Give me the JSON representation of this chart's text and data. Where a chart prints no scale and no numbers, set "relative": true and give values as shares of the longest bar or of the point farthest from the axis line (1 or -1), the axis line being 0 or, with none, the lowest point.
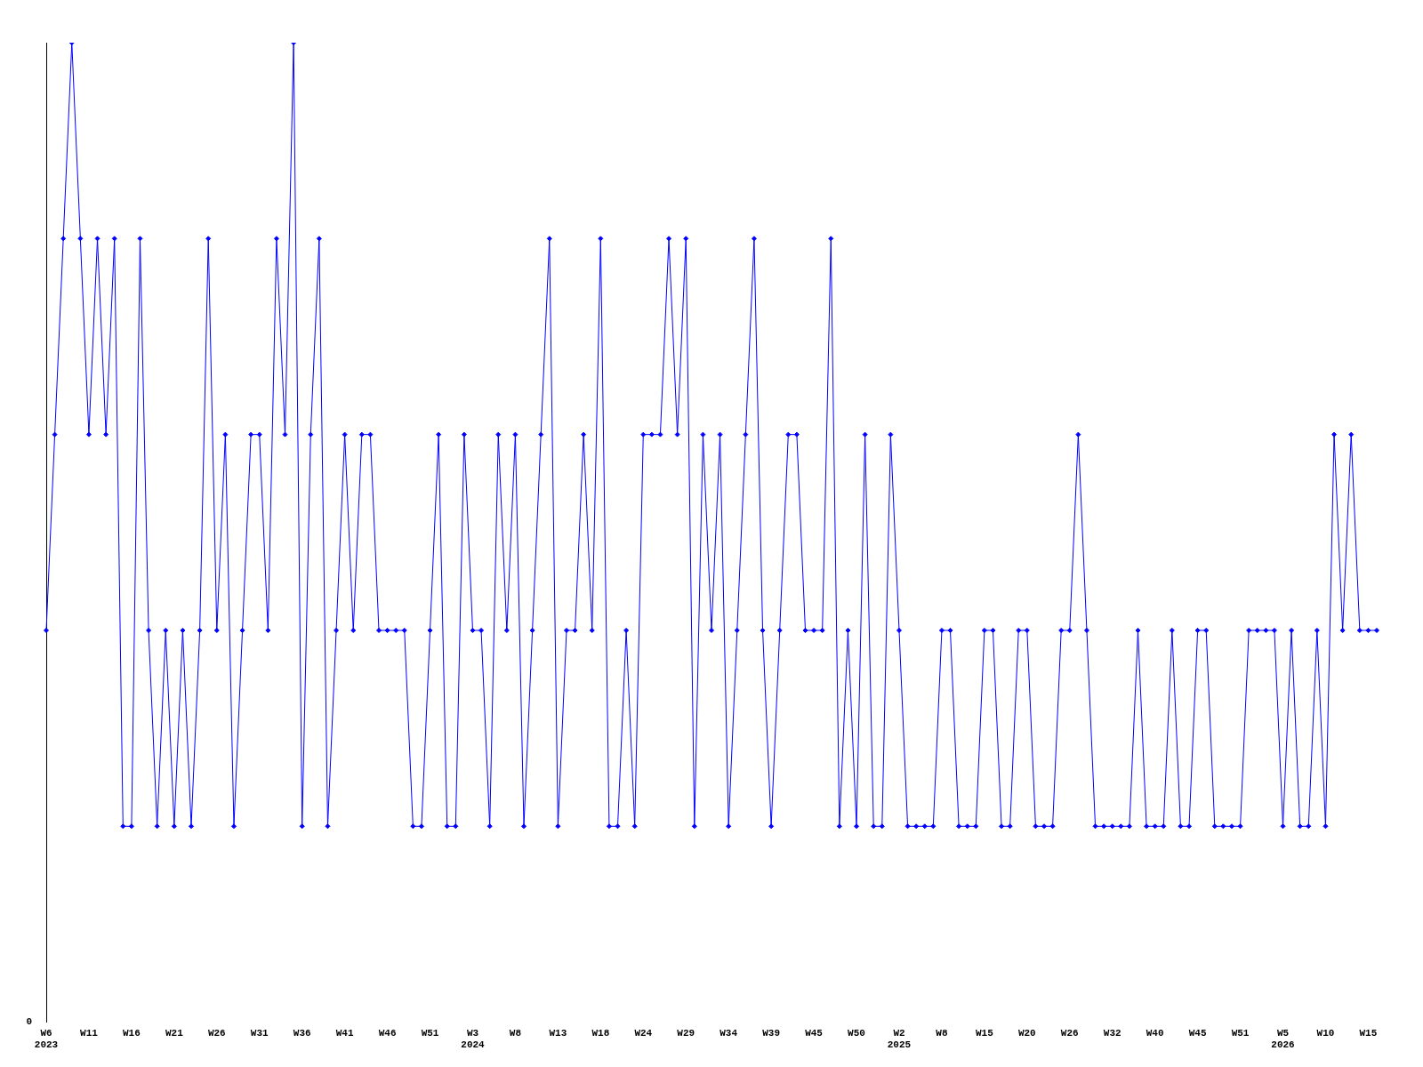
{
  "chart_data": {
    "type": "line",
    "relative": true,
    "annotations": [
      "0"
    ],
    "color": "#0000ff",
    "marker": "diamond",
    "line_style": "solid",
    "grid": false,
    "legend": false,
    "categories": [
      "W6\n2023",
      null,
      null,
      null,
      null,
      "W11",
      null,
      null,
      null,
      null,
      "W16",
      null,
      null,
      null,
      null,
      "W21",
      null,
      null,
      null,
      null,
      "W26",
      null,
      null,
      null,
      null,
      "W31",
      null,
      null,
      null,
      null,
      "W36",
      null,
      null,
      null,
      null,
      "W41",
      null,
      null,
      null,
      null,
      "W46",
      null,
      null,
      null,
      null,
      "W51",
      null,
      null,
      null,
      null,
      "W3\n2024",
      null,
      null,
      null,
      null,
      "W8",
      null,
      null,
      null,
      null,
      "W13",
      null,
      null,
      null,
      null,
      "W18",
      null,
      null,
      null,
      null,
      "W24",
      null,
      null,
      null,
      null,
      "W29",
      null,
      null,
      null,
      null,
      "W34",
      null,
      null,
      null,
      null,
      "W39",
      null,
      null,
      null,
      null,
      "W45",
      null,
      null,
      null,
      null,
      "W50",
      null,
      null,
      null,
      null,
      "W2\n2025",
      null,
      null,
      null,
      null,
      "W8",
      null,
      null,
      null,
      null,
      "W15",
      null,
      null,
      null,
      null,
      "W20",
      null,
      null,
      null,
      null,
      "W26",
      null,
      null,
      null,
      null,
      "W32",
      null,
      null,
      null,
      null,
      "W40",
      null,
      null,
      null,
      null,
      "W45",
      null,
      null,
      null,
      null,
      "W51",
      null,
      null,
      null,
      null,
      "W5\n2026",
      null,
      null,
      null,
      null,
      "W10",
      null,
      null,
      null,
      null,
      "W15",
      null
    ],
    "values": [
      0.4,
      0.6,
      0.8,
      1,
      0.8,
      0.6,
      0.8,
      0.6,
      0.8,
      0.2,
      0.2,
      0.8,
      0.4,
      0.2,
      0.4,
      0.2,
      0.4,
      0.2,
      0.4,
      0.8,
      0.4,
      0.6,
      0.2,
      0.4,
      0.6,
      0.6,
      0.4,
      0.8,
      0.6,
      1,
      0.2,
      0.6,
      0.8,
      0.2,
      0.4,
      0.6,
      0.4,
      0.6,
      0.6,
      0.4,
      0.4,
      0.4,
      0.4,
      0.2,
      0.2,
      0.4,
      0.6,
      0.2,
      0.2,
      0.6,
      0.4,
      0.4,
      0.2,
      0.6,
      0.4,
      0.6,
      0.2,
      0.4,
      0.6,
      0.8,
      0.2,
      0.4,
      0.4,
      0.6,
      0.4,
      0.8,
      0.2,
      0.2,
      0.4,
      0.2,
      0.6,
      0.6,
      0.6,
      0.8,
      0.6,
      0.8,
      0.2,
      0.6,
      0.4,
      0.6,
      0.2,
      0.4,
      0.6,
      0.8,
      0.4,
      0.2,
      0.4,
      0.6,
      0.6,
      0.4,
      0.4,
      0.4,
      0.8,
      0.2,
      0.4,
      0.2,
      0.6,
      0.2,
      0.2,
      0.6,
      0.4,
      0.2,
      0.2,
      0.2,
      0.2,
      0.4,
      0.4,
      0.2,
      0.2,
      0.2,
      0.4,
      0.4,
      0.2,
      0.2,
      0.4,
      0.4,
      0.2,
      0.2,
      0.2,
      0.4,
      0.4,
      0.6,
      0.4,
      0.2,
      0.2,
      0.2,
      0.2,
      0.2,
      0.4,
      0.2,
      0.2,
      0.2,
      0.4,
      0.2,
      0.2,
      0.4,
      0.4,
      0.2,
      0.2,
      0.2,
      0.2,
      0.4,
      0.4,
      0.4,
      0.4,
      0.2,
      0.4,
      0.2,
      0.2,
      0.4,
      0.2,
      0.6,
      0.4,
      0.6,
      0.4,
      0.4,
      0.4
    ]
  }
}
